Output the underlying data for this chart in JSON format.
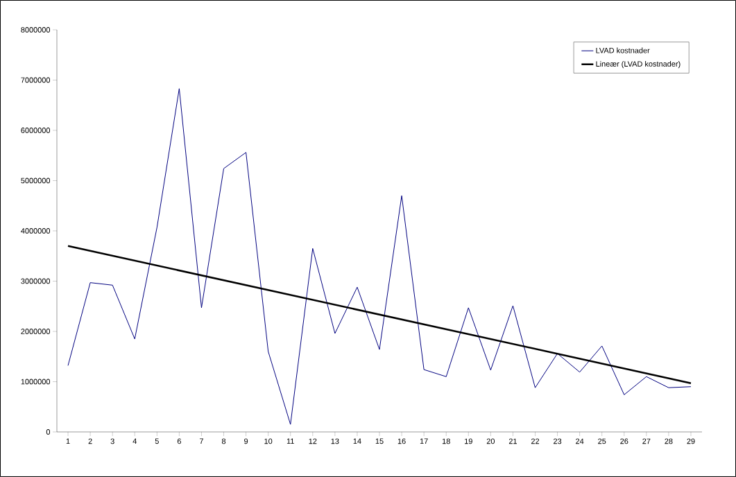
{
  "chart_data": {
    "type": "line",
    "x": [
      1,
      2,
      3,
      4,
      5,
      6,
      7,
      8,
      9,
      10,
      11,
      12,
      13,
      14,
      15,
      16,
      17,
      18,
      19,
      20,
      21,
      22,
      23,
      24,
      25,
      26,
      27,
      28,
      29
    ],
    "series": [
      {
        "name": "LVAD kostnader",
        "color": "#000080",
        "values": [
          1320000,
          2970000,
          2920000,
          1850000,
          4070000,
          6830000,
          2470000,
          5240000,
          5560000,
          1600000,
          150000,
          3650000,
          1960000,
          2880000,
          1640000,
          4700000,
          1240000,
          1100000,
          2470000,
          1230000,
          2510000,
          880000,
          1560000,
          1190000,
          1710000,
          740000,
          1100000,
          880000,
          900000
        ]
      },
      {
        "name": "Lineær (LVAD kostnader)",
        "color": "#000000",
        "x": [
          1,
          29
        ],
        "values": [
          3700000,
          970000
        ]
      }
    ],
    "xlim": [
      0.5,
      29.5
    ],
    "xticks": [
      1,
      2,
      3,
      4,
      5,
      6,
      7,
      8,
      9,
      10,
      11,
      12,
      13,
      14,
      15,
      16,
      17,
      18,
      19,
      20,
      21,
      22,
      23,
      24,
      25,
      26,
      27,
      28,
      29
    ],
    "ylim": [
      0,
      8000000
    ],
    "yticks": [
      0,
      1000000,
      2000000,
      3000000,
      4000000,
      5000000,
      6000000,
      7000000,
      8000000
    ],
    "grid": false,
    "legend": "top right",
    "marker": "none",
    "line_style": "solid"
  }
}
